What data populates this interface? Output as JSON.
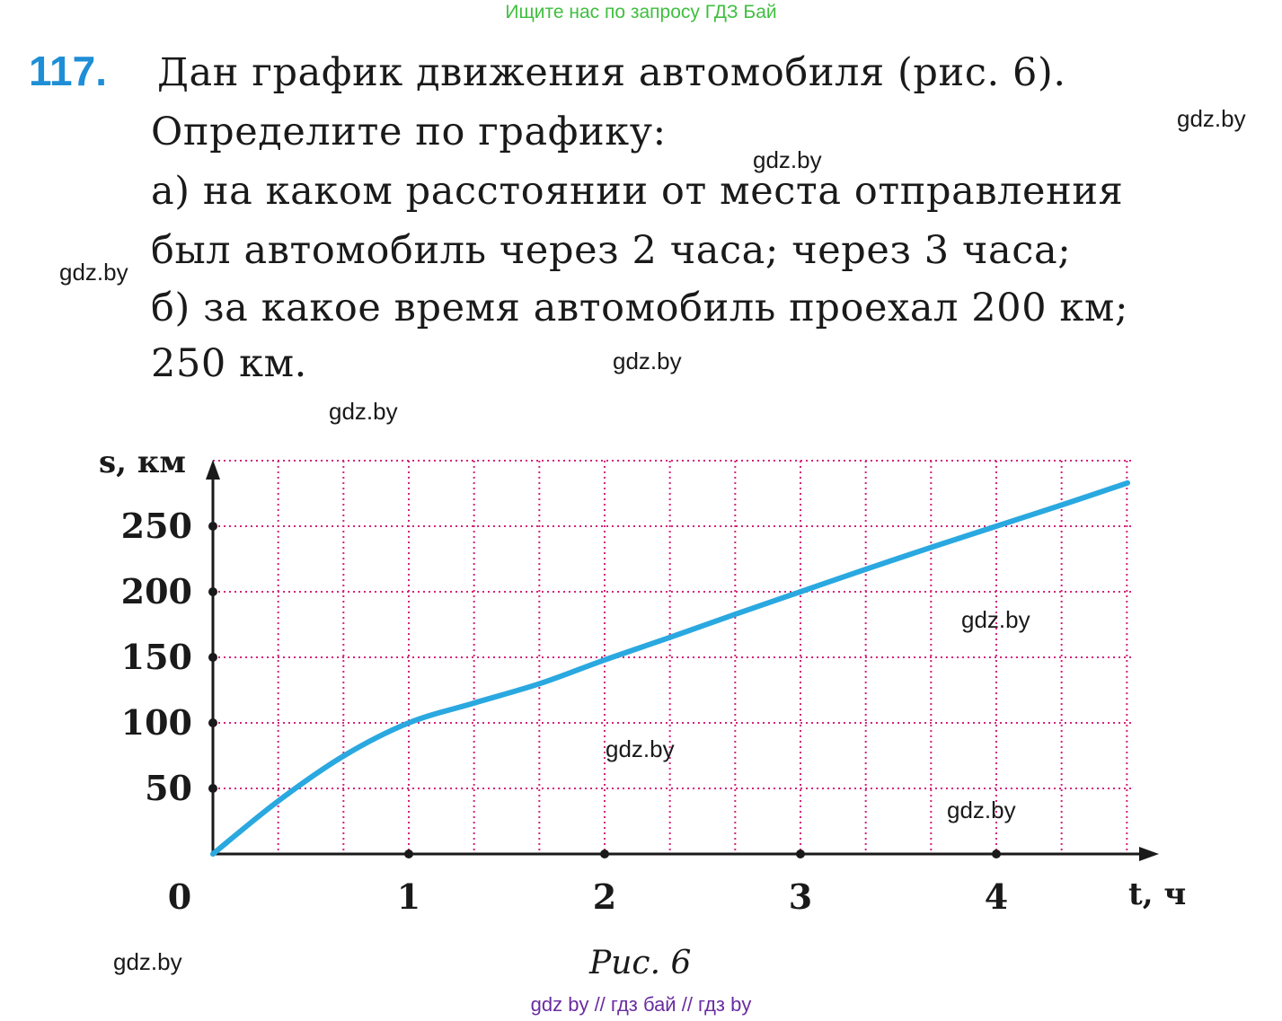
{
  "banner_top": "Ищите нас по запросу ГДЗ Бай",
  "problem": {
    "number": "117.",
    "lines": [
      "Дан график движения автомобиля (рис. 6).",
      "Определите по графику:",
      "а) на каком расстоянии от места отправления",
      "был автомобиль через 2 часа; через 3 часа;",
      "б) за какое время автомобиль проехал 200 км;",
      "250 км."
    ]
  },
  "watermarks": [
    "gdz.by",
    "gdz.by",
    "gdz.by",
    "gdz.by",
    "gdz.by",
    "gdz.by",
    "gdz.by",
    "gdz.by",
    "gdz.by"
  ],
  "chart_data": {
    "type": "line",
    "xlabel": "t, ч",
    "ylabel": "s, км",
    "x_ticks": [
      "1",
      "2",
      "3",
      "4"
    ],
    "y_ticks": [
      "50",
      "100",
      "150",
      "200",
      "250"
    ],
    "origin_label": "0",
    "xlim": [
      0,
      4.7
    ],
    "ylim": [
      0,
      300
    ],
    "grid": true,
    "grid_color": "#d4237a",
    "line_color": "#2aa8e0",
    "series": [
      {
        "x": [
          0,
          0.33,
          0.67,
          1,
          1.33,
          1.67,
          2,
          2.33,
          2.67,
          3,
          3.33,
          3.67,
          4,
          4.33,
          4.67
        ],
        "y": [
          0,
          40,
          75,
          100,
          115,
          130,
          148,
          165,
          183,
          200,
          217,
          234,
          250,
          266,
          283
        ]
      }
    ]
  },
  "caption": "Рис. 6",
  "banner_bottom": "gdz by  //  гдз бай  //  гдз by"
}
